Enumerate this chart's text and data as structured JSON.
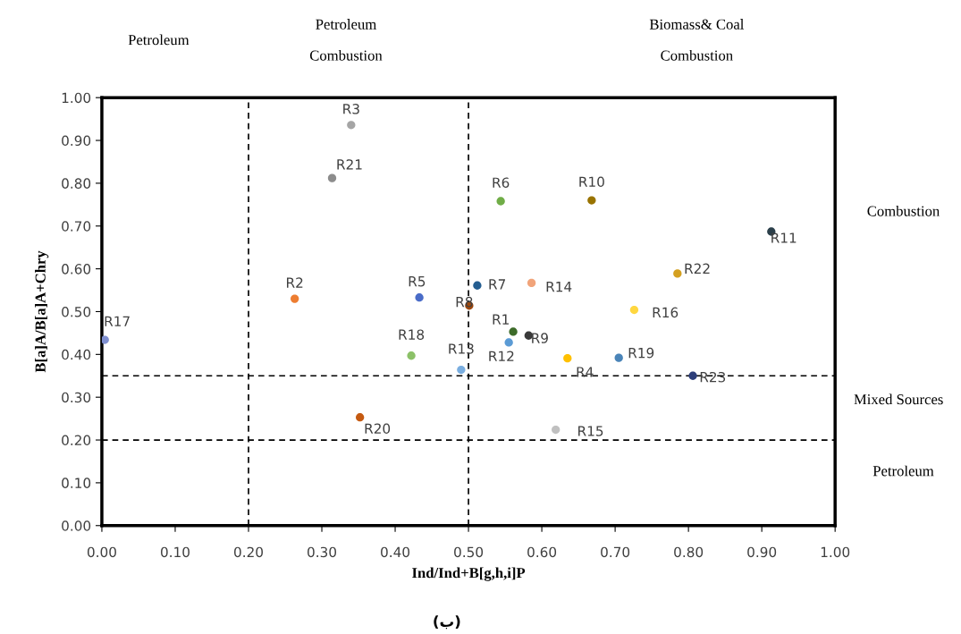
{
  "chart_data": {
    "type": "scatter",
    "xlabel": "Ind/Ind+B[g,h,i]P",
    "ylabel": "B[a]A/B[a]A+Chry",
    "marker": "circle",
    "grid": false,
    "legend": false,
    "xlim": [
      0,
      1
    ],
    "ylim": [
      0,
      1
    ],
    "xticks": [
      {
        "value": 0,
        "label": "0.00"
      },
      {
        "value": 0.1,
        "label": "0.10"
      },
      {
        "value": 0.2,
        "label": "0.20"
      },
      {
        "value": 0.3,
        "label": "0.30"
      },
      {
        "value": 0.4,
        "label": "0.40"
      },
      {
        "value": 0.5,
        "label": "0.50"
      },
      {
        "value": 0.6,
        "label": "0.60"
      },
      {
        "value": 0.7,
        "label": "0.70"
      },
      {
        "value": 0.8,
        "label": "0.80"
      },
      {
        "value": 0.9,
        "label": "0.90"
      },
      {
        "value": 1,
        "label": "1.00"
      }
    ],
    "yticks": [
      {
        "value": 0,
        "label": "0.00"
      },
      {
        "value": 0.1,
        "label": "0.10"
      },
      {
        "value": 0.2,
        "label": "0.20"
      },
      {
        "value": 0.3,
        "label": "0.30"
      },
      {
        "value": 0.4,
        "label": "0.40"
      },
      {
        "value": 0.5,
        "label": "0.50"
      },
      {
        "value": 0.6,
        "label": "0.60"
      },
      {
        "value": 0.7,
        "label": "0.70"
      },
      {
        "value": 0.8,
        "label": "0.80"
      },
      {
        "value": 0.9,
        "label": "0.90"
      },
      {
        "value": 1,
        "label": "1.00"
      }
    ],
    "ref_lines": [
      {
        "axis": "x",
        "value": 0.2,
        "color": "#000000",
        "line_style": "dashed"
      },
      {
        "axis": "x",
        "value": 0.5,
        "color": "#000000",
        "line_style": "dashed"
      },
      {
        "axis": "y",
        "value": 0.35,
        "color": "#000000",
        "line_style": "dashed"
      },
      {
        "axis": "y",
        "value": 0.2,
        "color": "#000000",
        "line_style": "dashed"
      }
    ],
    "annotations": [
      "Petroleum",
      "Petroleum\n\nCombustion",
      "Biomass& Coal\n\nCombustion",
      "Combustion",
      "Mixed Sources",
      "Petroleum",
      "(ب)"
    ],
    "series": [
      {
        "name": "R1",
        "color": "#3d6b2a",
        "x": [
          0.561
        ],
        "values": [
          0.453
        ]
      },
      {
        "name": "R2",
        "color": "#ed7d31",
        "x": [
          0.263
        ],
        "values": [
          0.53
        ]
      },
      {
        "name": "R3",
        "color": "#a5a5a5",
        "x": [
          0.34
        ],
        "values": [
          0.936
        ]
      },
      {
        "name": "R4",
        "color": "#ffc000",
        "x": [
          0.635
        ],
        "values": [
          0.391
        ]
      },
      {
        "name": "R5",
        "color": "#4a6cc8",
        "x": [
          0.433
        ],
        "values": [
          0.533
        ]
      },
      {
        "name": "R6",
        "color": "#70ad47",
        "x": [
          0.544
        ],
        "values": [
          0.758
        ]
      },
      {
        "name": "R7",
        "color": "#255e91",
        "x": [
          0.512
        ],
        "values": [
          0.561
        ]
      },
      {
        "name": "R8",
        "color": "#9e480e",
        "x": [
          0.501
        ],
        "values": [
          0.514
        ]
      },
      {
        "name": "R9",
        "color": "#3a3a3a",
        "x": [
          0.582
        ],
        "values": [
          0.444
        ]
      },
      {
        "name": "R10",
        "color": "#997300",
        "x": [
          0.668
        ],
        "values": [
          0.76
        ]
      },
      {
        "name": "R11",
        "color": "#2b3f4a",
        "x": [
          0.913
        ],
        "values": [
          0.687
        ]
      },
      {
        "name": "R12",
        "color": "#5b9bd5",
        "x": [
          0.555
        ],
        "values": [
          0.428
        ]
      },
      {
        "name": "R13",
        "color": "#7aaee0",
        "x": [
          0.49
        ],
        "values": [
          0.364
        ]
      },
      {
        "name": "R14",
        "color": "#f1a47a",
        "x": [
          0.586
        ],
        "values": [
          0.567
        ]
      },
      {
        "name": "R15",
        "color": "#c0c0c0",
        "x": [
          0.619
        ],
        "values": [
          0.224
        ]
      },
      {
        "name": "R16",
        "color": "#ffd740",
        "x": [
          0.726
        ],
        "values": [
          0.504
        ]
      },
      {
        "name": "R17",
        "color": "#7f8fd0",
        "x": [
          0.004
        ],
        "values": [
          0.434
        ]
      },
      {
        "name": "R18",
        "color": "#8cc168",
        "x": [
          0.422
        ],
        "values": [
          0.397
        ]
      },
      {
        "name": "R19",
        "color": "#4a84b8",
        "x": [
          0.705
        ],
        "values": [
          0.392
        ]
      },
      {
        "name": "R20",
        "color": "#c55a11",
        "x": [
          0.352
        ],
        "values": [
          0.253
        ]
      },
      {
        "name": "R21",
        "color": "#8c8c8c",
        "x": [
          0.314
        ],
        "values": [
          0.812
        ]
      },
      {
        "name": "R22",
        "color": "#d4a020",
        "x": [
          0.785
        ],
        "values": [
          0.589
        ]
      },
      {
        "name": "R23",
        "color": "#2e3f7a",
        "x": [
          0.806
        ],
        "values": [
          0.35
        ]
      }
    ]
  }
}
